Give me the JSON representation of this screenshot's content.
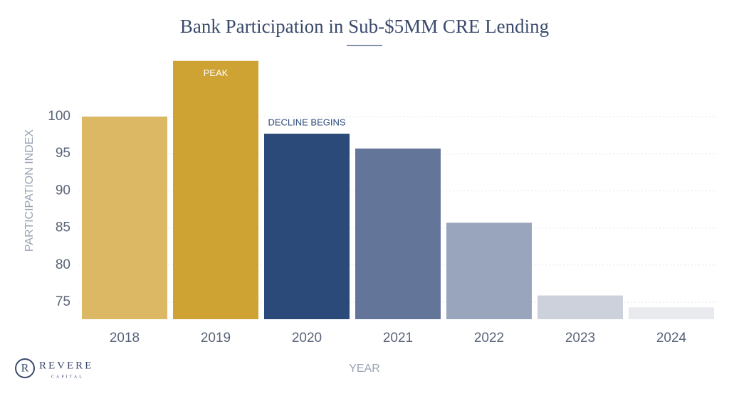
{
  "chart_data": {
    "type": "bar",
    "title": "Bank Participation in Sub-$5MM CRE Lending",
    "x_label": "YEAR",
    "y_label": "PARTICIPATION INDEX",
    "categories": [
      "2018",
      "2019",
      "2020",
      "2021",
      "2022",
      "2023",
      "2024"
    ],
    "values": [
      100,
      107.5,
      97.7,
      95.7,
      85.7,
      75.9,
      74.3
    ],
    "colors": [
      "#dcb865",
      "#cea233",
      "#2b4a7a",
      "#637699",
      "#98a5bd",
      "#ccd1dc",
      "#e8eaee"
    ],
    "ylim": [
      72.7,
      108
    ],
    "yticks": [
      75,
      80,
      85,
      90,
      95,
      100
    ],
    "grid": true,
    "annotations": [
      {
        "text": "PEAK",
        "category": 1,
        "placement": "inside",
        "color": "#ffffff"
      },
      {
        "text": "DECLINE BEGINS",
        "category": 2,
        "placement": "above",
        "color": "#2b4a7a"
      }
    ]
  },
  "logo": {
    "name": "REVERE",
    "tagline": "CAPITAL"
  }
}
